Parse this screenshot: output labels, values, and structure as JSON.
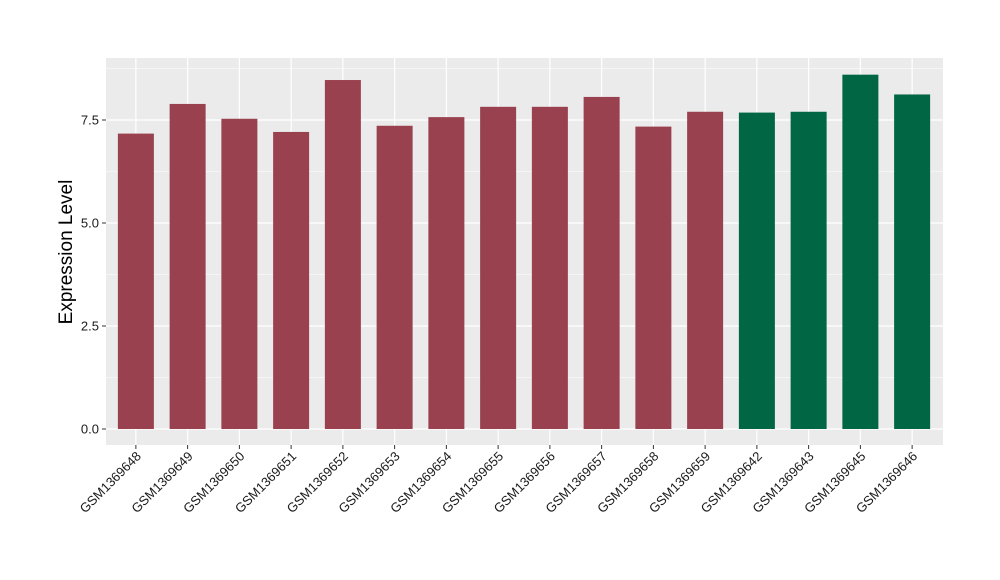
{
  "chart_data": {
    "type": "bar",
    "title": "",
    "xlabel": "",
    "ylabel": "Expression Level",
    "ylim": [
      0,
      9
    ],
    "yticks": [
      0.0,
      2.5,
      5.0,
      7.5
    ],
    "ytick_labels": [
      "0.0",
      "2.5",
      "5.0",
      "7.5"
    ],
    "grid": true,
    "categories": [
      "GSM1369648",
      "GSM1369649",
      "GSM1369650",
      "GSM1369651",
      "GSM1369652",
      "GSM1369653",
      "GSM1369654",
      "GSM1369655",
      "GSM1369656",
      "GSM1369657",
      "GSM1369658",
      "GSM1369659",
      "GSM1369642",
      "GSM1369643",
      "GSM1369645",
      "GSM1369646"
    ],
    "values": [
      7.17,
      7.89,
      7.53,
      7.21,
      8.47,
      7.36,
      7.57,
      7.82,
      7.82,
      8.06,
      7.34,
      7.7,
      7.68,
      7.7,
      8.6,
      8.12
    ],
    "groups": [
      0,
      0,
      0,
      0,
      0,
      0,
      0,
      0,
      0,
      0,
      0,
      0,
      1,
      1,
      1,
      1
    ],
    "group_colors": [
      "#99414f",
      "#006643"
    ],
    "panel_background": "#ebebeb",
    "grid_color": "#ffffff"
  }
}
